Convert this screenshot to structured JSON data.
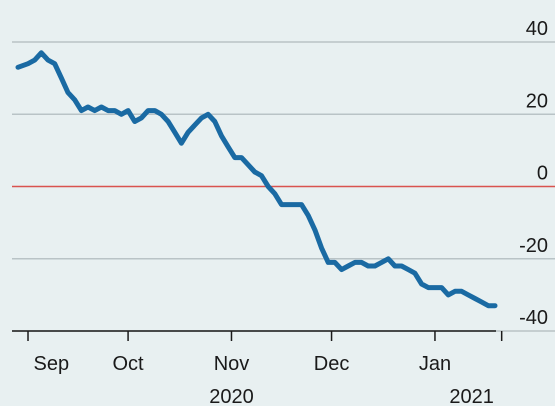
{
  "chart_data": {
    "type": "line",
    "title": "",
    "xlabel": "",
    "ylabel": "",
    "ylim": [
      -40,
      40
    ],
    "y_ticks": [
      40,
      20,
      0,
      -20,
      -40
    ],
    "grid": true,
    "x_labels": [
      {
        "label": "Sep",
        "x": "2020-09-08"
      },
      {
        "label": "Oct",
        "x": "2020-10-01"
      },
      {
        "label": "Nov",
        "x": "2020-11-01"
      },
      {
        "label": "Dec",
        "x": "2020-12-01"
      },
      {
        "label": "Jan",
        "x": "2021-01-01"
      }
    ],
    "month_boundaries": [
      "2020-09-01",
      "2020-10-01",
      "2020-11-01",
      "2020-12-01",
      "2021-01-01",
      "2021-01-21"
    ],
    "years": [
      {
        "label": "2020",
        "x": "2020-11-01"
      },
      {
        "label": "2021",
        "x": "2021-01-12"
      }
    ],
    "colors": {
      "line": "#1a6aa3",
      "zero_line": "#d9534f",
      "grid": "#b9c3c6",
      "axis": "#1a1a1a",
      "background": "#e8f0f1"
    },
    "series": [
      {
        "x": [
          "2020-08-29",
          "2020-09-01",
          "2020-09-03",
          "2020-09-05",
          "2020-09-07",
          "2020-09-09",
          "2020-09-11",
          "2020-09-13",
          "2020-09-15",
          "2020-09-17",
          "2020-09-19",
          "2020-09-21",
          "2020-09-23",
          "2020-09-25",
          "2020-09-27",
          "2020-09-29",
          "2020-10-01",
          "2020-10-03",
          "2020-10-05",
          "2020-10-07",
          "2020-10-09",
          "2020-10-11",
          "2020-10-13",
          "2020-10-15",
          "2020-10-17",
          "2020-10-19",
          "2020-10-21",
          "2020-10-23",
          "2020-10-25",
          "2020-10-27",
          "2020-10-29",
          "2020-10-31",
          "2020-11-02",
          "2020-11-04",
          "2020-11-06",
          "2020-11-08",
          "2020-11-10",
          "2020-11-12",
          "2020-11-14",
          "2020-11-16",
          "2020-11-18",
          "2020-11-20",
          "2020-11-22",
          "2020-11-24",
          "2020-11-26",
          "2020-11-28",
          "2020-11-30",
          "2020-12-02",
          "2020-12-04",
          "2020-12-06",
          "2020-12-08",
          "2020-12-10",
          "2020-12-12",
          "2020-12-14",
          "2020-12-16",
          "2020-12-18",
          "2020-12-20",
          "2020-12-22",
          "2020-12-24",
          "2020-12-26",
          "2020-12-28",
          "2020-12-30",
          "2021-01-01",
          "2021-01-03",
          "2021-01-05",
          "2021-01-07",
          "2021-01-09",
          "2021-01-11",
          "2021-01-13",
          "2021-01-15",
          "2021-01-17",
          "2021-01-19"
        ],
        "values": [
          33,
          34,
          35,
          37,
          35,
          34,
          30,
          26,
          24,
          21,
          22,
          21,
          22,
          21,
          21,
          20,
          21,
          18,
          19,
          21,
          21,
          20,
          18,
          15,
          12,
          15,
          17,
          19,
          20,
          18,
          14,
          11,
          8,
          8,
          6,
          4,
          3,
          0,
          -2,
          -5,
          -5,
          -5,
          -5,
          -8,
          -12,
          -17,
          -21,
          -21,
          -23,
          -22,
          -21,
          -21,
          -22,
          -22,
          -21,
          -20,
          -22,
          -22,
          -23,
          -24,
          -27,
          -28,
          -28,
          -28,
          -30,
          -29,
          -29,
          -30,
          -31,
          -32,
          -33,
          -33
        ]
      }
    ]
  }
}
